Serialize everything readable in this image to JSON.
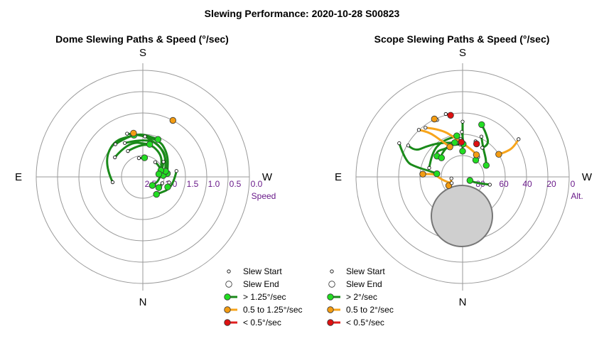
{
  "figure": {
    "title": "Slewing Performance: 2020-10-28 S00823"
  },
  "colors": {
    "fast": "#1a8a1a",
    "fast_marker": "#22dd22",
    "medium": "#f7a51c",
    "medium_marker": "#f39c12",
    "slow": "#e02020",
    "slow_marker": "#dd1111",
    "ring": "#9a9a9a",
    "axis_label": "#6a1b8a",
    "disk": "#cfcfcf"
  },
  "chart_data": [
    {
      "type": "scatter",
      "subtype": "polar-paths",
      "title": "Dome Slewing Paths & Speed (°/sec)",
      "directions": {
        "top": "S",
        "right": "W",
        "bottom": "N",
        "left": "E"
      },
      "radial_axis": {
        "ticks": [
          "2.5",
          "2.0",
          "1.5",
          "1.0",
          "0.5",
          "0.0"
        ],
        "label": "Speed"
      },
      "legend": [
        {
          "label": "Slew Start",
          "kind": "start"
        },
        {
          "label": "Slew End",
          "kind": "end"
        },
        {
          "label": "> 1.25°/sec",
          "kind": "fast"
        },
        {
          "label": "0.5 to 1.25°/sec",
          "kind": "medium"
        },
        {
          "label": "< 0.5°/sec",
          "kind": "slow"
        }
      ],
      "paths": [
        {
          "cat": "fast",
          "pts": [
            [
              1.78,
              -100
            ],
            [
              1.55,
              -72
            ],
            [
              1.4,
              -40
            ],
            [
              1.5,
              -12
            ]
          ]
        },
        {
          "cat": "fast",
          "pts": [
            [
              1.42,
              -20
            ],
            [
              1.5,
              20
            ],
            [
              1.7,
              48
            ],
            [
              1.92,
              82
            ]
          ]
        },
        {
          "cat": "fast",
          "pts": [
            [
              1.55,
              3
            ],
            [
              1.65,
              32
            ],
            [
              1.85,
              60
            ],
            [
              2.02,
              86
            ]
          ]
        },
        {
          "cat": "fast",
          "pts": [
            [
              1.6,
              -28
            ],
            [
              1.55,
              10
            ],
            [
              1.72,
              42
            ],
            [
              1.95,
              76
            ]
          ]
        },
        {
          "cat": "fast",
          "pts": [
            [
              1.5,
              -40
            ],
            [
              1.42,
              -10
            ],
            [
              1.55,
              22
            ]
          ]
        },
        {
          "cat": "fast",
          "pts": [
            [
              1.8,
              -30
            ],
            [
              1.65,
              5
            ],
            [
              1.8,
              40
            ],
            [
              2.05,
              70
            ]
          ]
        },
        {
          "cat": "fast",
          "pts": [
            [
              1.7,
              -55
            ],
            [
              1.6,
              -22
            ],
            [
              1.72,
              12
            ]
          ]
        },
        {
          "cat": "fast",
          "pts": [
            [
              2.05,
              -12
            ],
            [
              2.05,
              5
            ]
          ]
        },
        {
          "cat": "fast",
          "pts": [
            [
              2.05,
              40
            ],
            [
              2.02,
              62
            ],
            [
              2.12,
              80
            ]
          ]
        },
        {
          "cat": "fast",
          "pts": [
            [
              1.9,
              54
            ],
            [
              2.08,
              98
            ],
            [
              2.2,
              132
            ]
          ]
        },
        {
          "cat": "fast",
          "pts": [
            [
              1.7,
              80
            ],
            [
              1.75,
              110
            ],
            [
              1.98,
              142
            ]
          ]
        },
        {
          "cat": "fast",
          "pts": [
            [
              2.02,
              108
            ],
            [
              2.05,
              124
            ]
          ]
        },
        {
          "cat": "fast",
          "pts": [
            [
              1.87,
              102
            ],
            [
              1.87,
              112
            ]
          ]
        },
        {
          "cat": "medium",
          "pts": [
            [
              1.45,
              -12
            ],
            [
              1.45,
              -12
            ]
          ]
        },
        {
          "cat": "medium",
          "pts": [
            [
              1.0,
              28
            ],
            [
              1.0,
              28
            ]
          ]
        }
      ]
    },
    {
      "type": "scatter",
      "subtype": "polar-paths",
      "title": "Scope Slewing Paths & Speed (°/sec)",
      "directions": {
        "top": "S",
        "right": "W",
        "bottom": "N",
        "left": "E"
      },
      "radial_axis": {
        "ticks": [
          "80",
          "60",
          "40",
          "20",
          "0"
        ],
        "label": "Alt."
      },
      "legend": [
        {
          "label": "Slew Start",
          "kind": "start"
        },
        {
          "label": "Slew End",
          "kind": "end"
        },
        {
          "label": "> 2°/sec",
          "kind": "fast"
        },
        {
          "label": "0.5 to 2°/sec",
          "kind": "medium"
        },
        {
          "label": "< 0.5°/sec",
          "kind": "slow"
        }
      ],
      "paths": [
        {
          "cat": "fast",
          "pts": [
            [
              43.3,
              0
            ],
            [
              50,
              0
            ],
            [
              60,
              0
            ],
            [
              68.3,
              0
            ]
          ]
        },
        {
          "cat": "fast",
          "pts": [
            [
              52,
              -1
            ],
            [
              55,
              0
            ],
            [
              62.2,
              1
            ]
          ]
        },
        {
          "cat": "fast",
          "pts": [
            [
              52.4,
              25
            ],
            [
              60,
              35
            ],
            [
              65,
              52
            ],
            [
              67.8,
              64
            ]
          ]
        },
        {
          "cat": "fast",
          "pts": [
            [
              58,
              -3
            ],
            [
              63,
              -25
            ],
            [
              59,
              -45
            ],
            [
              62.2,
              -51
            ]
          ]
        },
        {
          "cat": "fast",
          "pts": [
            [
              60.8,
              -75
            ],
            [
              57,
              -52
            ],
            [
              55,
              -30
            ],
            [
              55,
              -8
            ]
          ]
        },
        {
          "cat": "fast",
          "pts": [
            [
              62.6,
              -4
            ],
            [
              60,
              -22
            ],
            [
              64,
              -45
            ],
            [
              66,
              -48
            ]
          ]
        },
        {
          "cat": "fast",
          "pts": [
            [
              37,
              -60
            ],
            [
              44,
              -62
            ],
            [
              50,
              -50
            ],
            [
              55,
              -35
            ],
            [
              60.3,
              -13
            ]
          ]
        },
        {
          "cat": "fast",
          "pts": [
            [
              29.4,
              -62
            ],
            [
              40,
              -75
            ],
            [
              50,
              -78
            ],
            [
              62,
              -80
            ],
            [
              68.1,
              -83
            ]
          ]
        },
        {
          "cat": "fast",
          "pts": [
            [
              60.3,
              34
            ],
            [
              55,
              40
            ],
            [
              48,
              28
            ],
            [
              43,
              20
            ]
          ]
        },
        {
          "cat": "fast",
          "pts": [
            [
              68.7,
              38
            ],
            [
              72,
              38
            ]
          ]
        },
        {
          "cat": "fast",
          "pts": [
            [
              66.1,
              106
            ],
            [
              74,
              110
            ],
            [
              79,
              115
            ],
            [
              83.1,
              116
            ]
          ]
        },
        {
          "cat": "medium",
          "pts": [
            [
              35.8,
              -43
            ],
            [
              42,
              -37
            ],
            [
              55,
              -30
            ],
            [
              62.5,
              -23
            ]
          ]
        },
        {
          "cat": "medium",
          "pts": [
            [
              38,
              -37
            ],
            [
              46,
              -24
            ],
            [
              58,
              -8
            ],
            [
              66,
              20
            ],
            [
              68,
              32
            ]
          ]
        },
        {
          "cat": "medium",
          "pts": [
            [
              33,
              56
            ],
            [
              40,
              60
            ],
            [
              48,
              60
            ],
            [
              54,
              58
            ]
          ]
        },
        {
          "cat": "medium",
          "pts": [
            [
              80.4,
              -98
            ],
            [
              80,
              -108
            ],
            [
              78,
              -116
            ],
            [
              76.2,
              -122
            ]
          ]
        },
        {
          "cat": "medium",
          "pts": [
            [
              79.4,
              -120
            ],
            [
              76,
              -108
            ],
            [
              70,
              -92
            ],
            [
              66,
              -84
            ],
            [
              56.3,
              -86
            ]
          ]
        },
        {
          "cat": "medium",
          "pts": [
            [
              37.3,
              -24
            ],
            [
              35.6,
              -26
            ]
          ]
        },
        {
          "cat": "slow",
          "pts": [
            [
              35,
              -15
            ],
            [
              37,
              -11
            ]
          ]
        },
        {
          "cat": "slow",
          "pts": [
            [
              58,
              20
            ],
            [
              59.7,
              23
            ]
          ]
        },
        {
          "cat": "slow",
          "pts": [
            [
              60,
              -1
            ],
            [
              60.6,
              -2
            ]
          ]
        }
      ]
    }
  ]
}
